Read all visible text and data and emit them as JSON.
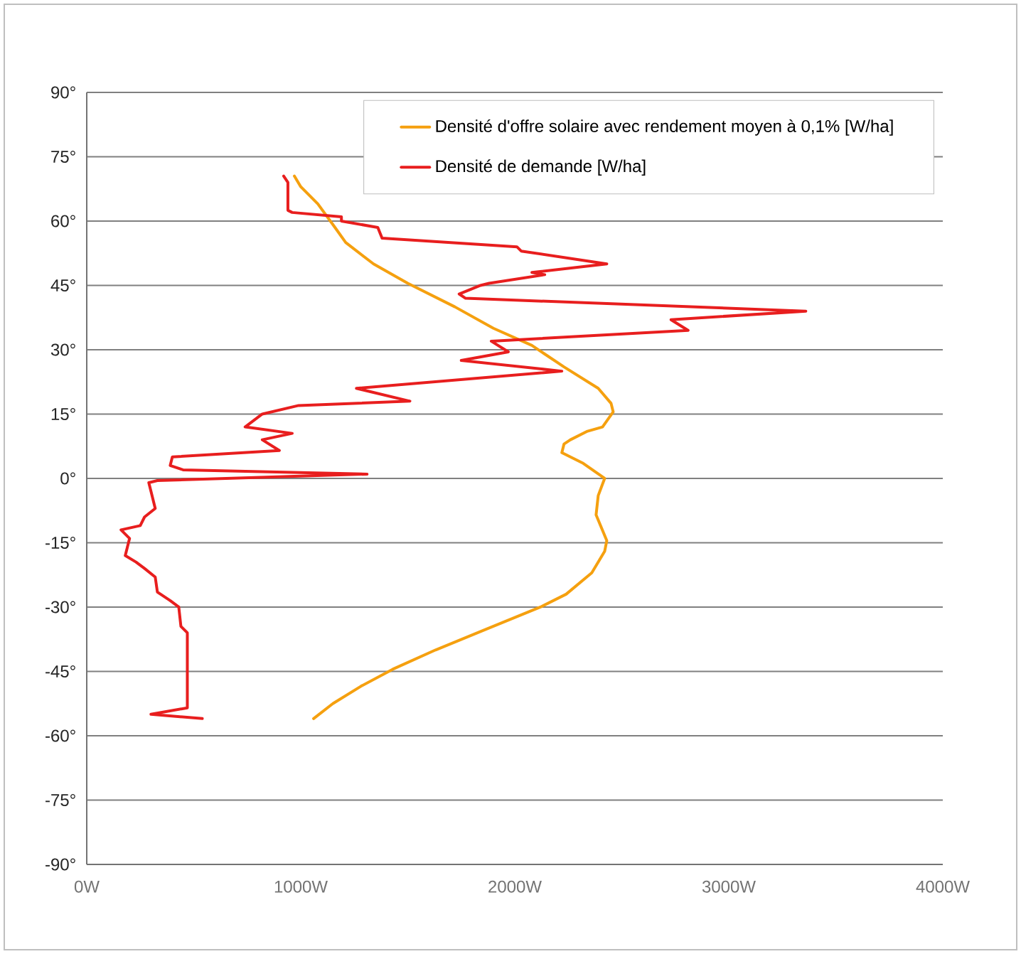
{
  "chart_data": {
    "type": "line",
    "xlim": [
      0,
      4000
    ],
    "xticks": [
      {
        "value": 0,
        "label": "0W"
      },
      {
        "value": 1000,
        "label": "1000W"
      },
      {
        "value": 2000,
        "label": "2000W"
      },
      {
        "value": 3000,
        "label": "3000W"
      },
      {
        "value": 4000,
        "label": "4000W"
      }
    ],
    "ylim": [
      -90,
      90
    ],
    "yticks": [
      {
        "value": -90,
        "label": "-90°"
      },
      {
        "value": -75,
        "label": "-75°"
      },
      {
        "value": -60,
        "label": "-60°"
      },
      {
        "value": -45,
        "label": "-45°"
      },
      {
        "value": -30,
        "label": "-30°"
      },
      {
        "value": -15,
        "label": "-15°"
      },
      {
        "value": 0,
        "label": "0°"
      },
      {
        "value": 15,
        "label": "15°"
      },
      {
        "value": 30,
        "label": "30°"
      },
      {
        "value": 45,
        "label": "45°"
      },
      {
        "value": 60,
        "label": "60°"
      },
      {
        "value": 75,
        "label": "75°"
      },
      {
        "value": 90,
        "label": "90°"
      }
    ],
    "grid": "y",
    "legend": "top right",
    "series": [
      {
        "name": "Densité d'offre solaire avec rendement moyen à 0,1% [W/ha]",
        "color": "#f5a00f",
        "x": [
          970,
          1000,
          1080,
          1160,
          1210,
          1340,
          1500,
          1720,
          1900,
          2080,
          2230,
          2390,
          2450,
          2460,
          2410,
          2340,
          2260,
          2230,
          2220,
          2320,
          2420,
          2390,
          2380,
          2430,
          2420,
          2360,
          2240,
          2120,
          1850,
          1630,
          1430,
          1280,
          1150,
          1060
        ],
        "values": [
          70.5,
          68,
          64,
          58.5,
          55,
          50,
          45.5,
          40,
          35,
          31,
          26,
          21,
          17.5,
          15.5,
          12,
          11,
          9,
          8,
          6,
          3.5,
          0,
          -4,
          -8.5,
          -14.5,
          -17,
          -22,
          -27,
          -30,
          -35.5,
          -40,
          -44.5,
          -48.5,
          -52.5,
          -56
        ]
      },
      {
        "name": "Densité de demande [W/ha]",
        "color": "#e81e1e",
        "x": [
          920,
          940,
          940,
          960,
          1190,
          1190,
          1360,
          1380,
          2010,
          2030,
          2430,
          2080,
          2140,
          1880,
          1840,
          1740,
          1770,
          3360,
          2730,
          2810,
          1890,
          1970,
          1750,
          2220,
          1260,
          1510,
          990,
          820,
          740,
          960,
          820,
          900,
          400,
          390,
          450,
          1310,
          330,
          290,
          300,
          320,
          270,
          250,
          160,
          200,
          180,
          230,
          270,
          320,
          330,
          390,
          430,
          440,
          470,
          470,
          300,
          540
        ],
        "values": [
          70.5,
          69,
          62.5,
          62,
          61,
          60,
          58.5,
          56,
          54,
          53,
          50,
          48,
          47.5,
          45.5,
          45,
          43,
          42,
          39,
          37,
          34.5,
          32,
          29.5,
          27.5,
          25,
          21,
          18,
          17,
          15,
          12,
          10.5,
          9,
          6.5,
          5,
          3,
          2,
          1,
          -0.5,
          -1,
          -3,
          -7,
          -9,
          -11,
          -12,
          -14,
          -18,
          -19.5,
          -21,
          -23,
          -26.5,
          -28.5,
          -30,
          -34.5,
          -36,
          -53.5,
          -55,
          -56
        ]
      }
    ]
  }
}
